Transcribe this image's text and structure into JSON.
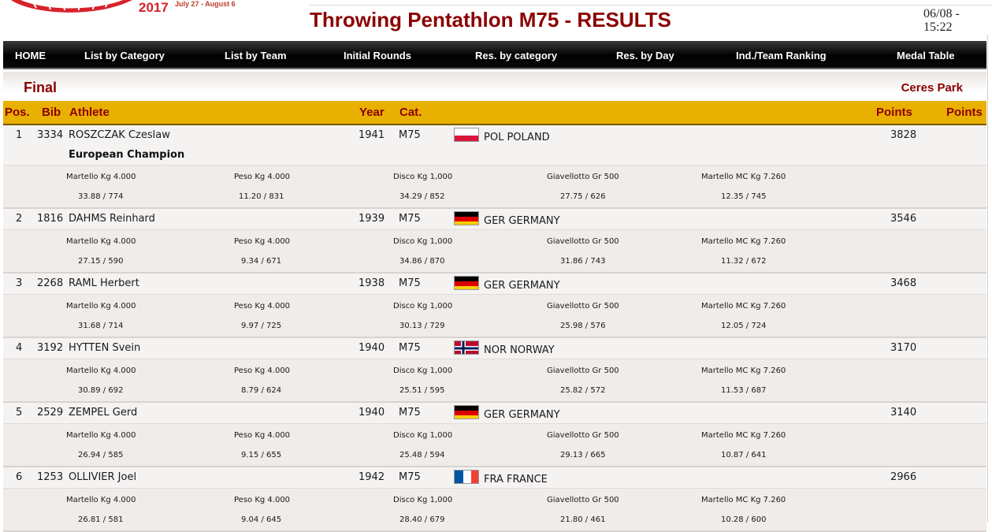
{
  "header": {
    "logo_year": "2017",
    "logo_dates": "July 27 - August 6",
    "title": "Throwing Pentathlon M75 - RESULTS",
    "timestamp": "06/08 - 15:22"
  },
  "nav": {
    "items": [
      "HOME",
      "List by Category",
      "List by Team",
      "Initial Rounds",
      "Res. by category",
      "Res. by Day",
      "Ind./Team Ranking",
      "Medal Table"
    ]
  },
  "section": {
    "round": "Final",
    "venue": "Ceres Park"
  },
  "table": {
    "headers": {
      "pos": "Pos.",
      "bib": "Bib",
      "athlete": "Athlete",
      "year": "Year",
      "cat": "Cat.",
      "points": "Points",
      "points2": "Points"
    },
    "events": [
      "Martello Kg 4.000",
      "Peso Kg 4.000",
      "Disco Kg 1,000",
      "Giavellotto Gr 500",
      "Martello MC Kg 7.260"
    ],
    "rows": [
      {
        "pos": "1",
        "bib": "3334",
        "athlete": "ROSZCZAK Czeslaw",
        "year": "1941",
        "cat": "M75",
        "flag": "poland-flag-icon",
        "country": "POL POLAND",
        "points": "3828",
        "title": "European Champion",
        "results": [
          "33.88 / 774",
          "11.20 / 831",
          "34.29 / 852",
          "27.75 / 626",
          "12.35 / 745"
        ]
      },
      {
        "pos": "2",
        "bib": "1816",
        "athlete": "DAHMS Reinhard",
        "year": "1939",
        "cat": "M75",
        "flag": "germany-flag-icon",
        "country": "GER GERMANY",
        "points": "3546",
        "results": [
          "27.15 / 590",
          "9.34 / 671",
          "34.86 / 870",
          "31.86 / 743",
          "11.32 / 672"
        ]
      },
      {
        "pos": "3",
        "bib": "2268",
        "athlete": "RAML Herbert",
        "year": "1938",
        "cat": "M75",
        "flag": "germany-flag-icon",
        "country": "GER GERMANY",
        "points": "3468",
        "results": [
          "31.68 / 714",
          "9.97 / 725",
          "30.13 / 729",
          "25.98 / 576",
          "12.05 / 724"
        ]
      },
      {
        "pos": "4",
        "bib": "3192",
        "athlete": "HYTTEN Svein",
        "year": "1940",
        "cat": "M75",
        "flag": "norway-flag-icon",
        "country": "NOR NORWAY",
        "points": "3170",
        "results": [
          "30.89 / 692",
          "8.79 / 624",
          "25.51 / 595",
          "25.82 / 572",
          "11.53 / 687"
        ]
      },
      {
        "pos": "5",
        "bib": "2529",
        "athlete": "ZEMPEL Gerd",
        "year": "1940",
        "cat": "M75",
        "flag": "germany-flag-icon",
        "country": "GER GERMANY",
        "points": "3140",
        "results": [
          "26.94 / 585",
          "9.15 / 655",
          "25.48 / 594",
          "29.13 / 665",
          "10.87 / 641"
        ]
      },
      {
        "pos": "6",
        "bib": "1253",
        "athlete": "OLLIVIER Joel",
        "year": "1942",
        "cat": "M75",
        "flag": "france-flag-icon",
        "country": "FRA FRANCE",
        "points": "2966",
        "results": [
          "26.81 / 581",
          "9.04 / 645",
          "28.40 / 679",
          "21.80 / 461",
          "10.28 / 600"
        ]
      }
    ]
  },
  "colors": {
    "title_red": "#8b0000",
    "header_gold": "#e8b000",
    "nav_black": "#000000"
  }
}
